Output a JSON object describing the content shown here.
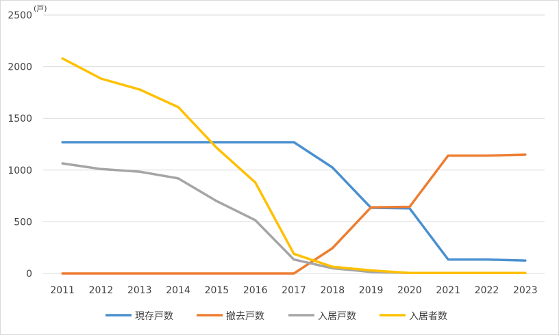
{
  "chart_data": {
    "type": "line",
    "unit_label": "(戸)",
    "x": [
      "2011",
      "2012",
      "2013",
      "2014",
      "2015",
      "2016",
      "2017",
      "2018",
      "2019",
      "2020",
      "2021",
      "2022",
      "2023"
    ],
    "ylim": [
      0,
      2500
    ],
    "yticks": [
      "0",
      "500",
      "1000",
      "1500",
      "2000",
      "2500"
    ],
    "grid": true,
    "legend_position": "bottom",
    "series": [
      {
        "name": "現存戸数",
        "color": "#4a90d0",
        "values": [
          1270,
          1270,
          1270,
          1270,
          1270,
          1270,
          1270,
          1025,
          635,
          630,
          135,
          135,
          125
        ]
      },
      {
        "name": "撤去戸数",
        "color": "#ed7d31",
        "values": [
          0,
          0,
          0,
          0,
          0,
          0,
          0,
          245,
          640,
          645,
          1140,
          1140,
          1150
        ]
      },
      {
        "name": "入居戸数",
        "color": "#a5a5a5",
        "values": [
          1065,
          1010,
          985,
          920,
          700,
          515,
          135,
          50,
          15,
          5,
          5,
          5,
          5
        ]
      },
      {
        "name": "入居者数",
        "color": "#ffc000",
        "values": [
          2080,
          1885,
          1780,
          1610,
          1215,
          880,
          190,
          65,
          30,
          5,
          5,
          5,
          5
        ]
      }
    ]
  }
}
